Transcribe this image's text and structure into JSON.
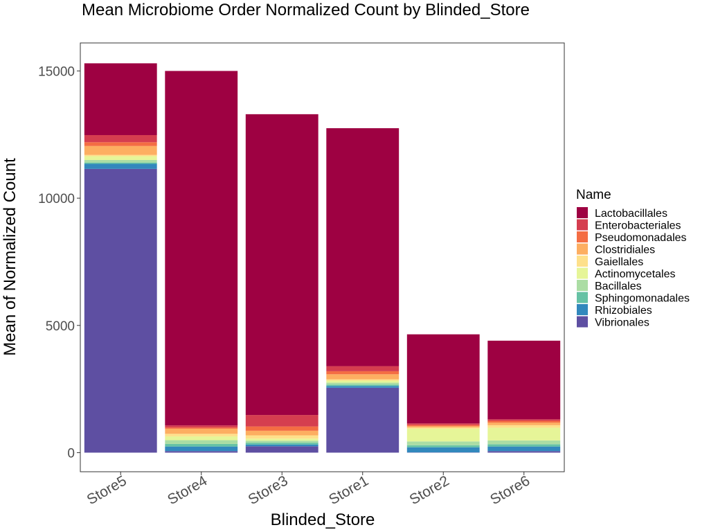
{
  "chart_data": {
    "type": "bar",
    "stacked": true,
    "title": "Mean Microbiome Order Normalized Count by Blinded_Store",
    "xlabel": "Blinded_Store",
    "ylabel": "Mean of Normalized Count",
    "ylim": [
      -750,
      16100
    ],
    "yticks": [
      0,
      5000,
      10000,
      15000
    ],
    "grid": false,
    "legend_position": "right",
    "legend_title": "Name",
    "categories": [
      "Store5",
      "Store4",
      "Store3",
      "Store1",
      "Store2",
      "Store6"
    ],
    "series": [
      {
        "name": "Vibrionales",
        "color": "#5e4fa2",
        "values": [
          11150,
          60,
          250,
          2550,
          10,
          60
        ]
      },
      {
        "name": "Rhizobiales",
        "color": "#3288bd",
        "values": [
          200,
          180,
          70,
          70,
          200,
          180
        ]
      },
      {
        "name": "Sphingomonadales",
        "color": "#66c2a5",
        "values": [
          50,
          100,
          70,
          50,
          80,
          90
        ]
      },
      {
        "name": "Bacillales",
        "color": "#abdda4",
        "values": [
          100,
          150,
          80,
          80,
          150,
          150
        ]
      },
      {
        "name": "Actinomycetales",
        "color": "#e6f598",
        "values": [
          150,
          150,
          80,
          80,
          500,
          500
        ]
      },
      {
        "name": "Gaiellales",
        "color": "#fee08b",
        "values": [
          50,
          100,
          130,
          50,
          50,
          100
        ]
      },
      {
        "name": "Clostridiales",
        "color": "#fdae61",
        "values": [
          350,
          200,
          180,
          200,
          50,
          100
        ]
      },
      {
        "name": "Pseudomonadales",
        "color": "#f46d43",
        "values": [
          150,
          50,
          170,
          120,
          50,
          70
        ]
      },
      {
        "name": "Enterobacteriales",
        "color": "#d53e4f",
        "values": [
          280,
          80,
          450,
          200,
          60,
          60
        ]
      },
      {
        "name": "Lactobacillales",
        "color": "#9e0142",
        "values": [
          2820,
          13930,
          11820,
          9350,
          3500,
          3090
        ]
      }
    ]
  }
}
